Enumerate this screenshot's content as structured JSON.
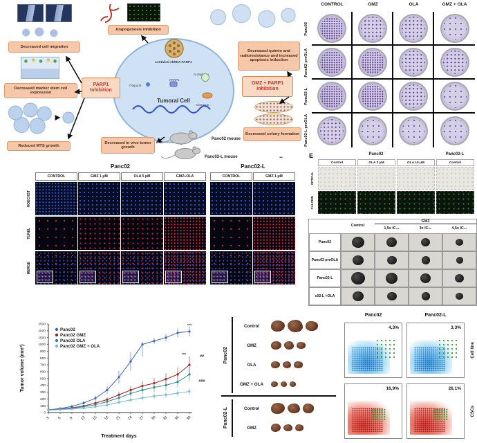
{
  "diagram": {
    "boxes": {
      "cell_migration": "Decreased cell migration",
      "marker_stem": "Decreased marker stem cell expression",
      "mts": "Reduced MTS growth",
      "angiogenesis": "Angiogenesis inhibition",
      "parp1": "PARP1 Inhibition",
      "gmz_parp1": "GMZ + PARP1 Inhibition",
      "quimio": "Decreased quimio and radioresistance and increased apoptosis induction",
      "colony": "Decreased colony formation",
      "invivo": "Decreased in vivo tumor growth"
    },
    "cell_label": "Tumoral Cell",
    "lentiviral_label": "Lentiviral shRNA PARP1",
    "inner_labels": [
      "Olaparib",
      "PARP1",
      "Autophagy",
      "Cleavage"
    ],
    "mouse_labels": [
      "Panc02 mouse",
      "Panc02-L mouse"
    ]
  },
  "stray_dots": "..",
  "colony": {
    "columns": [
      "CONTROL",
      "GMZ",
      "OLA",
      "GMZ + OLA"
    ],
    "rows": [
      {
        "label": "Panc02",
        "density": [
          3,
          2,
          2,
          1
        ]
      },
      {
        "label": "Panc02 preOLA",
        "density": [
          3,
          3,
          2,
          2
        ]
      },
      {
        "label": "Panc02-L",
        "density": [
          3,
          3,
          2,
          1
        ]
      },
      {
        "label": "Panc02-L preOLA",
        "density": [
          2,
          1,
          1,
          1
        ]
      }
    ]
  },
  "fluorescence": {
    "group_headers": [
      {
        "label": "Panc02",
        "cols": 4
      },
      {
        "label": "Panc02-L",
        "cols": 2
      }
    ],
    "columns": [
      "CONTROL",
      "GMZ 1 μM",
      "OLA 5 μM",
      "GMZ+OLA",
      "CONTROL",
      "GMZ 1 μM"
    ],
    "rows": [
      {
        "label": "HOECHST",
        "type": "hoechst",
        "density": [
          3,
          2,
          2,
          2,
          2,
          2
        ]
      },
      {
        "label": "TUNEL",
        "type": "tunel",
        "density": [
          1,
          2,
          2,
          3,
          1,
          3
        ]
      },
      {
        "label": "MERGE",
        "type": "merge",
        "density": [
          1,
          2,
          2,
          3,
          1,
          3
        ]
      }
    ]
  },
  "panel_e": {
    "panel_label": "E",
    "group_headers": [
      "Panc02",
      "Panc02-L"
    ],
    "columns": [
      "Control",
      "OLA 2 μM",
      "OLA 10 μM",
      "Control"
    ],
    "rows": [
      "OPTICAL",
      "CALCEIN"
    ]
  },
  "spheroids": {
    "control_header": "Control",
    "group_header": "GMZ",
    "dose_columns": [
      "1,5x IC₅₀",
      "3x IC₅₀",
      "4,5x IC₅₀"
    ],
    "rows": [
      {
        "label": "Panc02",
        "sizes": [
          18,
          15,
          13,
          11
        ]
      },
      {
        "label": "Panc02 preOLA",
        "sizes": [
          16,
          14,
          12,
          10
        ]
      },
      {
        "label": "Panc02-L",
        "sizes": [
          20,
          17,
          15,
          13
        ]
      },
      {
        "label": "c02-L +OLA",
        "sizes": [
          16,
          14,
          12,
          11
        ]
      }
    ]
  },
  "chart_data": {
    "type": "line",
    "title": "",
    "xlabel": "Treatment days",
    "ylabel": "Tumor volume (mm³)",
    "x": [
      3,
      6,
      9,
      12,
      15,
      18,
      21,
      24,
      27,
      30,
      33,
      36,
      39
    ],
    "yticks": [
      0,
      100,
      200,
      300,
      400,
      500,
      600,
      700,
      800,
      900,
      1000,
      1500,
      2000,
      2500
    ],
    "ylim": [
      0,
      2500
    ],
    "grid": false,
    "legend_position": "top-left",
    "error_frac": 0.18,
    "series": [
      {
        "name": "Panc02",
        "color": "#3a62c0",
        "values": [
          40,
          60,
          90,
          140,
          210,
          330,
          520,
          750,
          1000,
          1250,
          1500,
          1850,
          1950
        ]
      },
      {
        "name": "Panc02 GMZ",
        "color": "#9e2020",
        "values": [
          40,
          50,
          70,
          95,
          140,
          190,
          260,
          330,
          390,
          430,
          490,
          560,
          700
        ]
      },
      {
        "name": "Panc02 OLA",
        "color": "#2e8b8b",
        "values": [
          40,
          48,
          62,
          85,
          115,
          160,
          215,
          280,
          330,
          370,
          400,
          450,
          560
        ]
      },
      {
        "name": "Panc02 GMZ + OLA",
        "color": "#7ab6d6",
        "values": [
          35,
          42,
          52,
          65,
          85,
          110,
          150,
          185,
          215,
          240,
          260,
          285,
          310
        ]
      }
    ],
    "annotations": [
      {
        "text": "***",
        "x": 250,
        "y": 16
      },
      {
        "text": "***",
        "x": 242,
        "y": 58
      },
      {
        "text": "##",
        "x": 268,
        "y": 60
      },
      {
        "text": "###",
        "x": 268,
        "y": 96
      }
    ]
  },
  "tumors": {
    "groups": [
      {
        "label": "Panc02",
        "rows": [
          {
            "label": "Control",
            "blobs": [
              20,
              22,
              18
            ]
          },
          {
            "label": "GMZ",
            "blobs": [
              15,
              14,
              13
            ]
          },
          {
            "label": "OLA",
            "blobs": [
              13,
              12,
              13
            ]
          },
          {
            "label": "GMZ + OLA",
            "blobs": [
              10,
              9,
              9
            ]
          }
        ]
      },
      {
        "label": "Panc02-L",
        "rows": [
          {
            "label": "Control",
            "blobs": [
              20,
              18,
              16
            ]
          },
          {
            "label": "GMZ",
            "blobs": [
              14,
              13,
              12
            ]
          }
        ]
      }
    ]
  },
  "flow": {
    "columns": [
      "Panc02",
      "Panc02-L"
    ],
    "rows": [
      "Cell line",
      "CSCs"
    ],
    "plots": [
      [
        {
          "pct": "4,3%",
          "style": "cyan"
        },
        {
          "pct": "3,3%",
          "style": "cyan"
        }
      ],
      [
        {
          "pct": "16,9%",
          "style": "red"
        },
        {
          "pct": "26,1%",
          "style": "red"
        }
      ]
    ]
  }
}
